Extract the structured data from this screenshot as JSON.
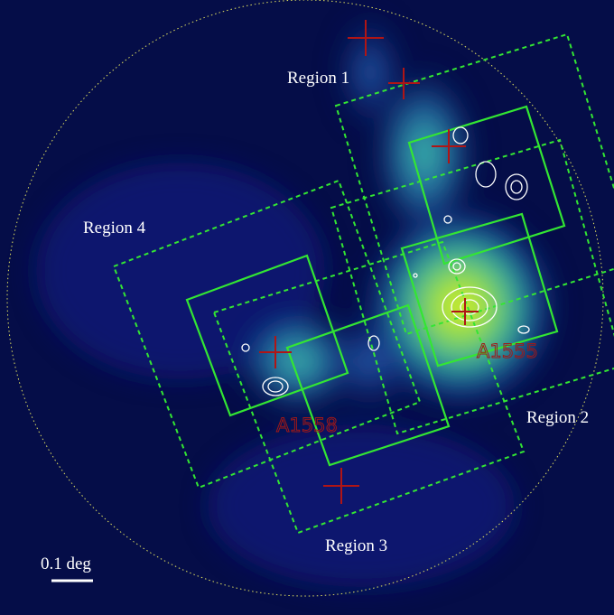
{
  "regions": [
    "Region 1",
    "Region 2",
    "Region 3",
    "Region 4"
  ],
  "clusters": [
    "A1555",
    "A1558"
  ],
  "scale_bar": "0.1 deg"
}
